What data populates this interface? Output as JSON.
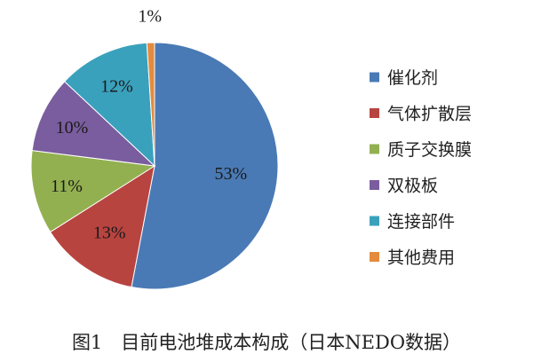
{
  "chart_data": {
    "type": "pie",
    "slices": [
      {
        "label": "催化剂",
        "value": 53,
        "value_label": "53%",
        "color": "#4a7ab5"
      },
      {
        "label": "气体扩散层",
        "value": 13,
        "value_label": "13%",
        "color": "#b84440"
      },
      {
        "label": "质子交换膜",
        "value": 11,
        "value_label": "11%",
        "color": "#93b050"
      },
      {
        "label": "双极板",
        "value": 10,
        "value_label": "10%",
        "color": "#7a5d9e"
      },
      {
        "label": "连接部件",
        "value": 12,
        "value_label": "12%",
        "color": "#3aa1bd"
      },
      {
        "label": "其他费用",
        "value": 1,
        "value_label": "1%",
        "color": "#e58b3e"
      }
    ],
    "legend_position": "right",
    "start_angle_deg": 0,
    "direction": "clockwise"
  },
  "caption": "图1　目前电池堆成本构成（日本NEDO数据）"
}
